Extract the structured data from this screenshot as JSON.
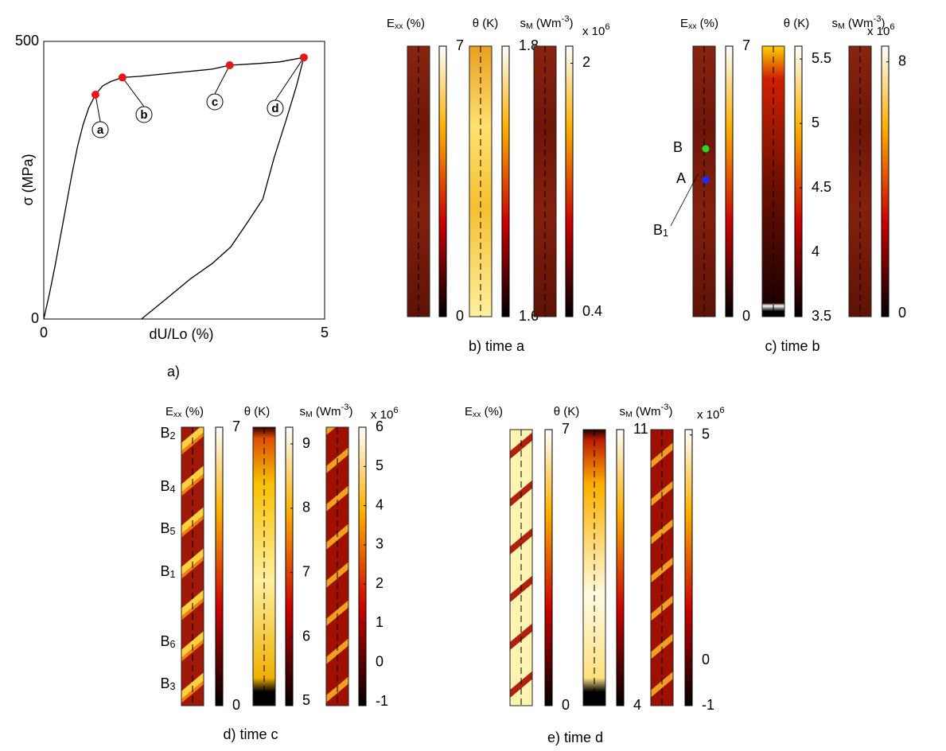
{
  "chart_data": {
    "type": "line",
    "caption": "a)",
    "xlabel": "dU/Lo (%)",
    "ylabel": "σ (MPa)",
    "color": "#000000",
    "x": [
      0,
      0.1,
      0.2,
      0.3,
      0.4,
      0.5,
      0.6,
      0.7,
      0.8,
      0.92,
      1.05,
      1.2,
      1.4,
      1.7,
      2.0,
      2.5,
      3.0,
      3.31,
      3.8,
      4.2,
      4.63,
      4.5,
      4.32,
      4.1,
      3.9,
      3.6,
      3.33,
      3.0,
      2.62,
      2.2,
      1.74
    ],
    "values": [
      0,
      45,
      95,
      150,
      205,
      260,
      310,
      350,
      380,
      404,
      420,
      428,
      435,
      437,
      440,
      445,
      450,
      457,
      460,
      463,
      471,
      420,
      360,
      290,
      216,
      170,
      130,
      100,
      73,
      38,
      0
    ],
    "xlim": [
      0,
      5
    ],
    "ylim": [
      0,
      500
    ],
    "xticks": [
      0,
      5
    ],
    "yticks": [
      0,
      500
    ],
    "points": {
      "x": [
        0.92,
        1.4,
        3.31,
        4.63
      ],
      "y": [
        404,
        435,
        457,
        471
      ],
      "labels": [
        "a",
        "b",
        "c",
        "d"
      ],
      "color": "#e8151b"
    }
  },
  "panels": [
    {
      "caption": "b) time a",
      "multiplier": [
        {
          "text": "x 10"
        },
        {
          "text": "6",
          "sup": true
        }
      ],
      "maps": [
        {
          "label": [
            {
              "text": "E"
            },
            {
              "text": "xx",
              "sub": true
            },
            {
              "text": " (%)"
            }
          ],
          "lim": [
            0,
            7
          ],
          "ticks": [
            0,
            7
          ]
        },
        {
          "label": "θ (K)",
          "lim": [
            1.6,
            1.8
          ],
          "ticks": [
            1.6,
            1.8
          ]
        },
        {
          "label": [
            {
              "text": "s"
            },
            {
              "text": "M",
              "sub": true
            },
            {
              "text": " (Wm"
            },
            {
              "text": "-3",
              "sup": true
            },
            {
              "text": ")"
            }
          ],
          "lim": [
            0.37,
            2.11
          ],
          "ticks": [
            0.4,
            2
          ]
        }
      ]
    },
    {
      "caption": "c) time b",
      "multiplier": [
        {
          "text": "x 10"
        },
        {
          "text": "6",
          "sup": true
        }
      ],
      "maps": [
        {
          "label": [
            {
              "text": "E"
            },
            {
              "text": "xx",
              "sub": true
            },
            {
              "text": " (%)"
            }
          ],
          "lim": [
            0,
            7
          ],
          "ticks": [
            0,
            7
          ]
        },
        {
          "label": "θ (K)",
          "lim": [
            3.5,
            5.6
          ],
          "ticks": [
            3.5,
            4,
            4.5,
            5,
            5.5
          ]
        },
        {
          "label": [
            {
              "text": "s"
            },
            {
              "text": "M",
              "sub": true
            },
            {
              "text": " (Wm"
            },
            {
              "text": "-3",
              "sup": true
            },
            {
              "text": ")"
            }
          ],
          "lim": [
            -0.1,
            8.5
          ],
          "ticks": [
            0,
            8
          ]
        }
      ],
      "annotations": [
        "B",
        "A",
        [
          {
            "text": "B"
          },
          {
            "text": "1",
            "sub": true
          }
        ]
      ]
    },
    {
      "caption": "d) time c",
      "multiplier": [
        {
          "text": "x 10"
        },
        {
          "text": "6",
          "sup": true
        }
      ],
      "maps": [
        {
          "label": [
            {
              "text": "E"
            },
            {
              "text": "xx",
              "sub": true
            },
            {
              "text": " (%)"
            }
          ],
          "lim": [
            0,
            7
          ],
          "ticks": [
            0,
            7
          ]
        },
        {
          "label": "θ (K)",
          "lim": [
            4.93,
            9.26
          ],
          "ticks": [
            5,
            6,
            7,
            8,
            9
          ]
        },
        {
          "label": [
            {
              "text": "s"
            },
            {
              "text": "M",
              "sub": true
            },
            {
              "text": " (Wm"
            },
            {
              "text": "-3",
              "sup": true
            },
            {
              "text": ")"
            }
          ],
          "lim": [
            -1.1,
            6
          ],
          "ticks": [
            -1,
            0,
            1,
            2,
            3,
            4,
            5,
            6
          ]
        }
      ],
      "annotations": [
        [
          {
            "text": "B"
          },
          {
            "text": "2",
            "sub": true
          }
        ],
        [
          {
            "text": "B"
          },
          {
            "text": "4",
            "sub": true
          }
        ],
        [
          {
            "text": "B"
          },
          {
            "text": "5",
            "sub": true
          }
        ],
        [
          {
            "text": "B"
          },
          {
            "text": "1",
            "sub": true
          }
        ],
        [
          {
            "text": "B"
          },
          {
            "text": "6",
            "sub": true
          }
        ],
        [
          {
            "text": "B"
          },
          {
            "text": "3",
            "sub": true
          }
        ]
      ]
    },
    {
      "caption": "e) time d",
      "multiplier": [
        {
          "text": "x 10"
        },
        {
          "text": "6",
          "sup": true
        }
      ],
      "maps": [
        {
          "label": [
            {
              "text": "E"
            },
            {
              "text": "xx",
              "sub": true
            },
            {
              "text": " (%)"
            }
          ],
          "lim": [
            0,
            7
          ],
          "ticks": [
            0,
            7
          ]
        },
        {
          "label": "θ (K)",
          "lim": [
            4,
            11
          ],
          "ticks": [
            4,
            11
          ]
        },
        {
          "label": [
            {
              "text": "s"
            },
            {
              "text": "M",
              "sub": true
            },
            {
              "text": " (Wm"
            },
            {
              "text": "-3",
              "sup": true
            },
            {
              "text": ")"
            }
          ],
          "lim": [
            -1,
            5.12
          ],
          "ticks": [
            -1,
            0,
            5
          ]
        }
      ]
    }
  ]
}
